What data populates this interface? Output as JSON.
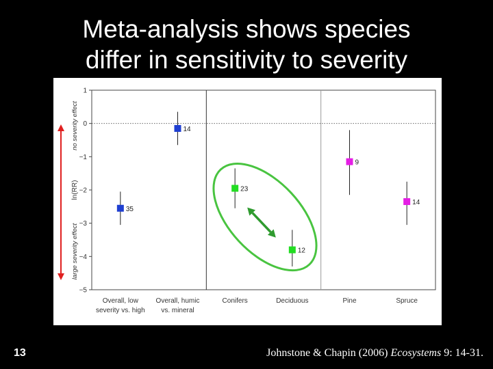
{
  "slide": {
    "title_line1": "Meta-analysis shows species",
    "title_line2": "differ in sensitivity to severity",
    "slide_number": "13",
    "citation_authors": "Johnstone & Chapin (2006) ",
    "citation_journal": "Ecosystems",
    "citation_rest": " 9: 14-31."
  },
  "colors": {
    "overall": "#1f3fd1",
    "conifer": "#22dd22",
    "deciduous": "#22dd22",
    "pine_spruce": "#e51ee5",
    "ellipse": "#49c440",
    "arrow": "#2f9b2f"
  },
  "chart_data": {
    "type": "scatter",
    "ylabel": "ln(RR)",
    "ylim": [
      -5,
      1
    ],
    "y_ticks": [
      1,
      0,
      -1,
      -2,
      -3,
      -4,
      -5
    ],
    "reference_line": 0,
    "annotation_top": "no severity effect",
    "annotation_bottom": "large severity effect",
    "categories": [
      [
        "Overall, low",
        "severity vs. high"
      ],
      [
        "Overall, humic",
        "vs. mineral"
      ],
      [
        "Conifers"
      ],
      [
        "Deciduous"
      ],
      [
        "Pine"
      ],
      [
        "Spruce"
      ]
    ],
    "points": [
      {
        "value": -2.55,
        "ci": [
          -3.05,
          -2.05
        ],
        "n": "35",
        "color_key": "overall"
      },
      {
        "value": -0.15,
        "ci": [
          -0.65,
          0.35
        ],
        "n": "14",
        "color_key": "overall"
      },
      {
        "value": -1.95,
        "ci": [
          -2.55,
          -1.35
        ],
        "n": "23",
        "color_key": "conifer"
      },
      {
        "value": -3.8,
        "ci": [
          -4.3,
          -3.2
        ],
        "n": "12",
        "color_key": "deciduous"
      },
      {
        "value": -1.15,
        "ci": [
          -2.15,
          -0.2
        ],
        "n": "9",
        "color_key": "pine_spruce"
      },
      {
        "value": -2.35,
        "ci": [
          -3.05,
          -1.75
        ],
        "n": "14",
        "color_key": "pine_spruce"
      }
    ],
    "group_dividers": [
      2,
      4
    ]
  }
}
